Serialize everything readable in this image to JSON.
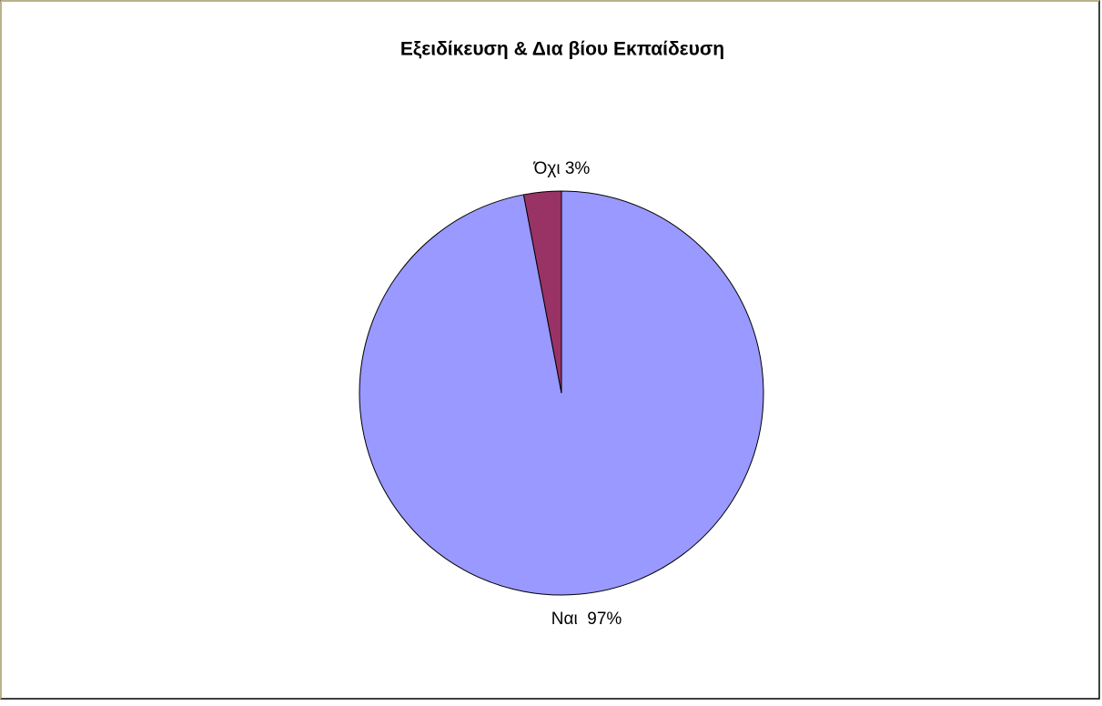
{
  "chart_data": {
    "type": "pie",
    "title": "Εξειδίκευση & Δια βίου Εκπαίδευση",
    "values": [
      97,
      3
    ],
    "value_labels": [
      "Ναι  97%",
      "Όχι 3%"
    ],
    "colors": [
      "#9999ff",
      "#993366"
    ]
  }
}
